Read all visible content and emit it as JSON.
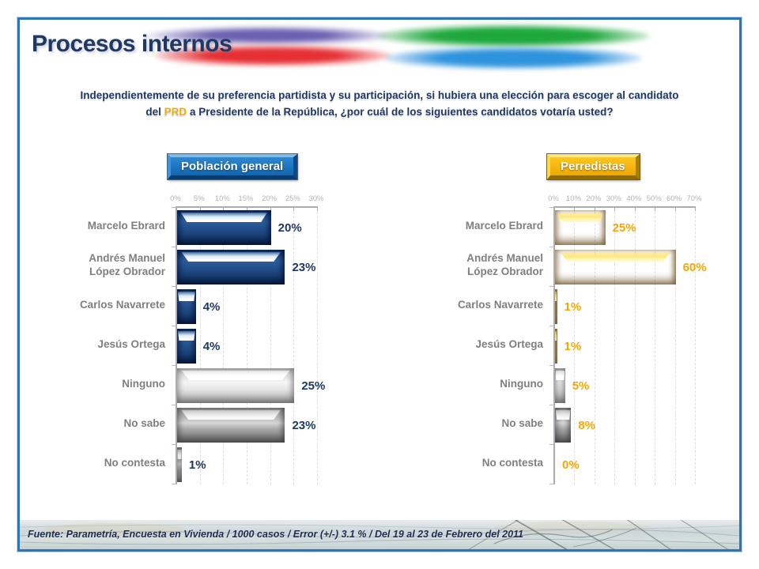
{
  "header": {
    "title": "Procesos internos"
  },
  "question": {
    "part1": "Independientemente de su preferencia partidista y su participación, si hubiera una elección para escoger al candidato del ",
    "highlight": "PRD",
    "part2": " a Presidente de la República, ¿por cuál de los siguientes candidatos votaría usted?"
  },
  "chart_data": [
    {
      "type": "bar",
      "orientation": "horizontal",
      "title": "Población general",
      "categories": [
        "Marcelo Ebrard",
        "Andrés Manuel López Obrador",
        "Carlos Navarrete",
        "Jesús Ortega",
        "Ninguno",
        "No sabe",
        "No contesta"
      ],
      "values": [
        20,
        23,
        4,
        4,
        25,
        23,
        1
      ],
      "value_labels": [
        "20%",
        "23%",
        "4%",
        "4%",
        "25%",
        "23%",
        "1%"
      ],
      "axis_ticks": [
        "0%",
        "5%",
        "10%",
        "15%",
        "20%",
        "25%",
        "30%"
      ],
      "xlim": [
        0,
        30
      ],
      "tick_step": 5,
      "grid": "dashed-vertical",
      "bar_styles": [
        "blue",
        "blue",
        "blue",
        "blue",
        "silver",
        "gray",
        "darkgray"
      ],
      "value_color": "#1f3864",
      "badge_color": "#1273c4"
    },
    {
      "type": "bar",
      "orientation": "horizontal",
      "title": "Perredistas",
      "categories": [
        "Marcelo Ebrard",
        "Andrés Manuel López Obrador",
        "Carlos Navarrete",
        "Jesús Ortega",
        "Ninguno",
        "No sabe",
        "No contesta"
      ],
      "values": [
        25,
        60,
        1,
        1,
        5,
        8,
        0
      ],
      "value_labels": [
        "25%",
        "60%",
        "1%",
        "1%",
        "5%",
        "8%",
        "0%"
      ],
      "axis_ticks": [
        "0%",
        "10%",
        "20%",
        "30%",
        "40%",
        "50%",
        "60%",
        "70%"
      ],
      "xlim": [
        0,
        70
      ],
      "tick_step": 10,
      "grid": "dashed-vertical",
      "bar_styles": [
        "gold",
        "gold",
        "gold",
        "gold",
        "silver",
        "gray",
        "darkgray"
      ],
      "value_color": "#f7a600",
      "badge_color": "#f5b500"
    }
  ],
  "footer": {
    "text": "Fuente: Parametría, Encuesta en Vivienda / 1000 casos / Error (+/-) 3.1 % / Del 19 al 23 de Febrero del 2011"
  },
  "colors": {
    "title_navy": "#1f3864",
    "label_gray": "#7f7f7f",
    "axis_gray": "#b3b3b3",
    "frame_blue": "#2e75b6",
    "prd_gold": "#f2ac00"
  }
}
